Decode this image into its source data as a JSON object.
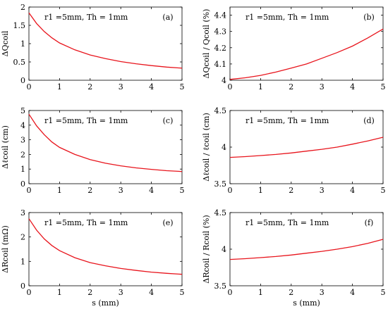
{
  "chart_data": [
    {
      "type": "line",
      "panel_label": "(a)",
      "annotation": "r1 =5mm, Th = 1mm",
      "ylabel": "ΔQcoil",
      "xlabel": "",
      "xlim": [
        0,
        5
      ],
      "ylim": [
        0,
        2
      ],
      "xticks": [
        0,
        1,
        2,
        3,
        4,
        5
      ],
      "yticks": [
        0,
        0.5,
        1,
        1.5,
        2
      ],
      "series": [
        {
          "color": "#e8141c",
          "x": [
            0,
            0.25,
            0.5,
            0.75,
            1,
            1.5,
            2,
            2.5,
            3,
            3.5,
            4,
            4.5,
            5
          ],
          "y": [
            1.84,
            1.55,
            1.33,
            1.16,
            1.02,
            0.83,
            0.69,
            0.59,
            0.51,
            0.45,
            0.4,
            0.36,
            0.33
          ]
        }
      ]
    },
    {
      "type": "line",
      "panel_label": "(b)",
      "annotation": "r1 =5mm, Th = 1mm",
      "ylabel": "ΔQcoil / Qcoil (%)",
      "xlabel": "",
      "xlim": [
        0,
        5
      ],
      "ylim": [
        4,
        4.45
      ],
      "xticks": [
        0,
        1,
        2,
        3,
        4,
        5
      ],
      "yticks": [
        4,
        4.1,
        4.2,
        4.3,
        4.4
      ],
      "series": [
        {
          "color": "#e8141c",
          "x": [
            0,
            0.5,
            1,
            1.5,
            2,
            2.5,
            3,
            3.5,
            4,
            4.5,
            5
          ],
          "y": [
            4.005,
            4.015,
            4.03,
            4.05,
            4.075,
            4.1,
            4.135,
            4.17,
            4.21,
            4.26,
            4.315
          ]
        }
      ]
    },
    {
      "type": "line",
      "panel_label": "(c)",
      "annotation": "r1 =5mm, Th = 1mm",
      "ylabel": "Δℓcoil (cm)",
      "xlabel": "",
      "xlim": [
        0,
        5
      ],
      "ylim": [
        0,
        5
      ],
      "xticks": [
        0,
        1,
        2,
        3,
        4,
        5
      ],
      "yticks": [
        0,
        1,
        2,
        3,
        4,
        5
      ],
      "series": [
        {
          "color": "#e8141c",
          "x": [
            0,
            0.25,
            0.5,
            0.75,
            1,
            1.5,
            2,
            2.5,
            3,
            3.5,
            4,
            4.5,
            5
          ],
          "y": [
            4.75,
            3.95,
            3.35,
            2.85,
            2.48,
            2.0,
            1.65,
            1.4,
            1.22,
            1.08,
            0.98,
            0.89,
            0.83
          ]
        }
      ]
    },
    {
      "type": "line",
      "panel_label": "(d)",
      "annotation": "r1 =5mm, Th = 1mm",
      "ylabel": "Δℓcoil / ℓcoil (cm)",
      "xlabel": "",
      "xlim": [
        0,
        5
      ],
      "ylim": [
        3.5,
        4.5
      ],
      "xticks": [
        0,
        1,
        2,
        3,
        4,
        5
      ],
      "yticks": [
        3.5,
        4,
        4.5
      ],
      "series": [
        {
          "color": "#e8141c",
          "x": [
            0,
            0.5,
            1,
            1.5,
            2,
            2.5,
            3,
            3.5,
            4,
            4.5,
            5
          ],
          "y": [
            3.86,
            3.87,
            3.885,
            3.9,
            3.92,
            3.945,
            3.97,
            4.0,
            4.04,
            4.085,
            4.135
          ]
        }
      ]
    },
    {
      "type": "line",
      "panel_label": "(e)",
      "annotation": "r1 =5mm, Th = 1mm",
      "ylabel": "ΔRcoil (mΩ)",
      "xlabel": "s (mm)",
      "xlim": [
        0,
        5
      ],
      "ylim": [
        0,
        3
      ],
      "xticks": [
        0,
        1,
        2,
        3,
        4,
        5
      ],
      "yticks": [
        0,
        1,
        2,
        3
      ],
      "series": [
        {
          "color": "#e8141c",
          "x": [
            0,
            0.25,
            0.5,
            0.75,
            1,
            1.5,
            2,
            2.5,
            3,
            3.5,
            4,
            4.5,
            5
          ],
          "y": [
            2.75,
            2.28,
            1.92,
            1.65,
            1.44,
            1.15,
            0.95,
            0.82,
            0.71,
            0.63,
            0.56,
            0.51,
            0.47
          ]
        }
      ]
    },
    {
      "type": "line",
      "panel_label": "(f)",
      "annotation": "r1 =5mm, Th = 1mm",
      "ylabel": "ΔRcoil / Rcoil (%)",
      "xlabel": "s (mm)",
      "xlim": [
        0,
        5
      ],
      "ylim": [
        3.5,
        4.5
      ],
      "xticks": [
        0,
        1,
        2,
        3,
        4,
        5
      ],
      "yticks": [
        3.5,
        4,
        4.5
      ],
      "series": [
        {
          "color": "#e8141c",
          "x": [
            0,
            0.5,
            1,
            1.5,
            2,
            2.5,
            3,
            3.5,
            4,
            4.5,
            5
          ],
          "y": [
            3.86,
            3.87,
            3.885,
            3.9,
            3.92,
            3.945,
            3.97,
            4.0,
            4.035,
            4.08,
            4.135
          ]
        }
      ]
    }
  ]
}
